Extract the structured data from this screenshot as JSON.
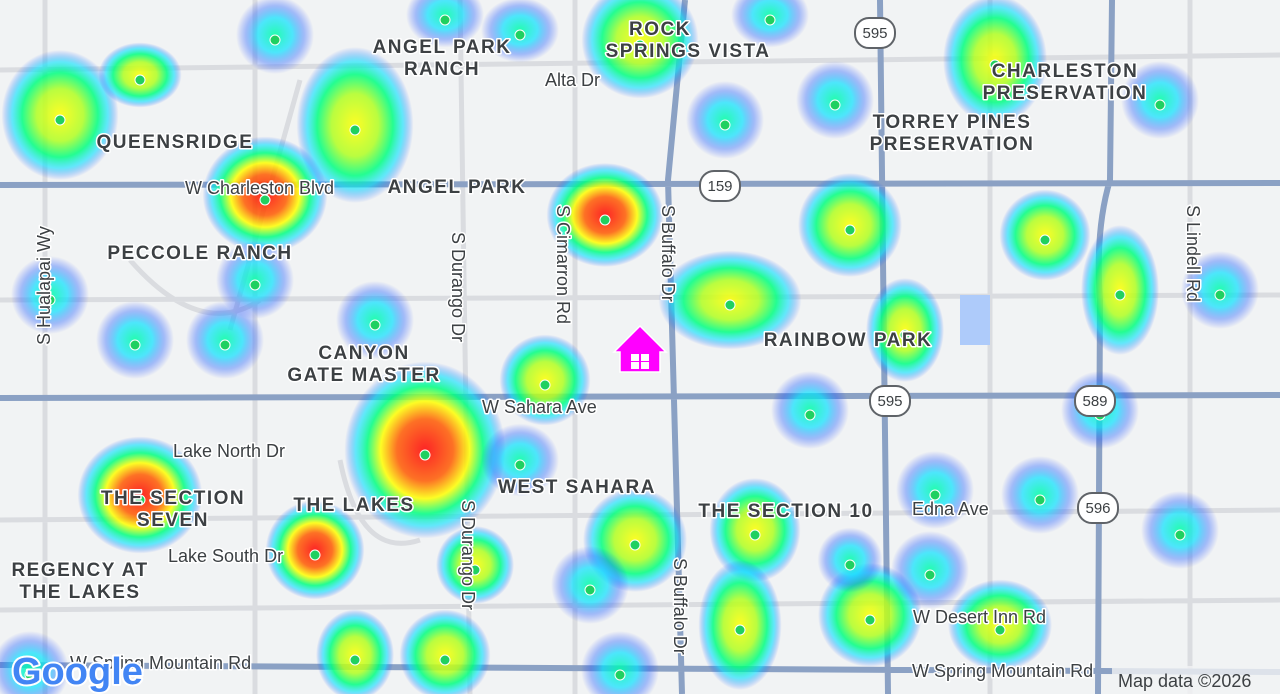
{
  "map": {
    "neighborhoods": [
      {
        "lines": [
          "ROCK",
          "SPRINGS VISTA"
        ]
      },
      {
        "lines": [
          "ANGEL PARK",
          "RANCH"
        ]
      },
      {
        "lines": [
          "CHARLESTON",
          "PRESERVATION"
        ]
      },
      {
        "lines": [
          "TORREY PINES",
          "PRESERVATION"
        ]
      },
      {
        "lines": [
          "QUEENSRIDGE"
        ]
      },
      {
        "lines": [
          "ANGEL PARK"
        ]
      },
      {
        "lines": [
          "PECCOLE RANCH"
        ]
      },
      {
        "lines": [
          "RAINBOW PARK"
        ]
      },
      {
        "lines": [
          "CANYON",
          "GATE MASTER"
        ]
      },
      {
        "lines": [
          "WEST SAHARA"
        ]
      },
      {
        "lines": [
          "THE SECTION",
          "SEVEN"
        ]
      },
      {
        "lines": [
          "THE LAKES"
        ]
      },
      {
        "lines": [
          "THE SECTION 10"
        ]
      },
      {
        "lines": [
          "REGENCY AT",
          "THE LAKES"
        ]
      }
    ],
    "streets": [
      "Alta Dr",
      "W Charleston Blvd",
      "S Hualapai Wy",
      "S Durango Dr",
      "S Cimarron Rd",
      "S Buffalo Dr",
      "S Lindell Rd",
      "W Sahara Ave",
      "Lake North Dr",
      "Lake South Dr",
      "S Durango Dr",
      "Edna Ave",
      "S Buffalo Dr",
      "W Desert Inn Rd",
      "W Spring Mountain Rd",
      "W Spring Mountain Rd"
    ],
    "shields": [
      "595",
      "159",
      "595",
      "589",
      "596"
    ],
    "attribution": "Map data ©2026",
    "logo": "Google"
  }
}
